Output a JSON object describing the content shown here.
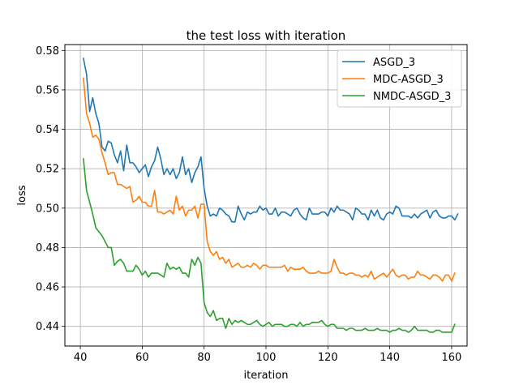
{
  "chart_data": {
    "type": "line",
    "title": "the test loss with iteration",
    "xlabel": "iteration",
    "ylabel": "loss",
    "xlim": [
      35,
      165
    ],
    "ylim": [
      0.43,
      0.583
    ],
    "xticks": [
      40,
      60,
      80,
      100,
      120,
      140,
      160
    ],
    "yticks": [
      0.44,
      0.46,
      0.48,
      0.5,
      0.52,
      0.54,
      0.56,
      0.58
    ],
    "grid": true,
    "legend_position": "top-right",
    "x_start": 41,
    "series": [
      {
        "name": "ASGD_3",
        "color": "#1f77b4",
        "values": [
          0.576,
          0.568,
          0.549,
          0.556,
          0.548,
          0.543,
          0.531,
          0.529,
          0.534,
          0.533,
          0.527,
          0.523,
          0.529,
          0.519,
          0.532,
          0.523,
          0.523,
          0.521,
          0.518,
          0.52,
          0.522,
          0.516,
          0.521,
          0.524,
          0.531,
          0.525,
          0.517,
          0.52,
          0.517,
          0.52,
          0.515,
          0.518,
          0.526,
          0.517,
          0.52,
          0.513,
          0.518,
          0.521,
          0.526,
          0.51,
          0.501,
          0.496,
          0.497,
          0.496,
          0.5,
          0.499,
          0.497,
          0.496,
          0.493,
          0.493,
          0.501,
          0.497,
          0.494,
          0.498,
          0.497,
          0.498,
          0.498,
          0.501,
          0.499,
          0.5,
          0.497,
          0.497,
          0.5,
          0.496,
          0.498,
          0.498,
          0.497,
          0.496,
          0.499,
          0.5,
          0.497,
          0.495,
          0.494,
          0.5,
          0.497,
          0.497,
          0.497,
          0.498,
          0.498,
          0.496,
          0.5,
          0.498,
          0.501,
          0.499,
          0.499,
          0.498,
          0.497,
          0.494,
          0.5,
          0.499,
          0.497,
          0.497,
          0.494,
          0.499,
          0.496,
          0.499,
          0.495,
          0.494,
          0.497,
          0.498,
          0.497,
          0.501,
          0.5,
          0.496,
          0.496,
          0.496,
          0.495,
          0.497,
          0.495,
          0.497,
          0.498,
          0.499,
          0.495,
          0.498,
          0.499,
          0.496,
          0.495,
          0.495,
          0.496,
          0.496,
          0.494,
          0.497
        ]
      },
      {
        "name": "MDC-ASGD_3",
        "color": "#ff7f0e",
        "values": [
          0.566,
          0.548,
          0.543,
          0.536,
          0.537,
          0.535,
          0.528,
          0.523,
          0.517,
          0.518,
          0.518,
          0.512,
          0.512,
          0.511,
          0.51,
          0.511,
          0.503,
          0.504,
          0.506,
          0.503,
          0.503,
          0.501,
          0.501,
          0.509,
          0.498,
          0.498,
          0.497,
          0.498,
          0.499,
          0.497,
          0.506,
          0.499,
          0.501,
          0.496,
          0.499,
          0.499,
          0.501,
          0.495,
          0.502,
          0.502,
          0.483,
          0.478,
          0.476,
          0.478,
          0.474,
          0.475,
          0.472,
          0.474,
          0.47,
          0.471,
          0.472,
          0.47,
          0.47,
          0.471,
          0.47,
          0.472,
          0.471,
          0.469,
          0.471,
          0.471,
          0.47,
          0.47,
          0.47,
          0.47,
          0.47,
          0.471,
          0.468,
          0.47,
          0.469,
          0.469,
          0.469,
          0.47,
          0.468,
          0.467,
          0.467,
          0.467,
          0.468,
          0.467,
          0.467,
          0.467,
          0.468,
          0.474,
          0.47,
          0.467,
          0.467,
          0.466,
          0.467,
          0.467,
          0.466,
          0.466,
          0.465,
          0.466,
          0.465,
          0.468,
          0.464,
          0.465,
          0.466,
          0.467,
          0.465,
          0.467,
          0.469,
          0.466,
          0.465,
          0.466,
          0.466,
          0.464,
          0.465,
          0.465,
          0.468,
          0.466,
          0.466,
          0.465,
          0.464,
          0.466,
          0.466,
          0.465,
          0.463,
          0.466,
          0.466,
          0.463,
          0.467
        ]
      },
      {
        "name": "NMDC-ASGD_3",
        "color": "#2ca02c",
        "values": [
          0.525,
          0.509,
          0.503,
          0.497,
          0.49,
          0.488,
          0.486,
          0.483,
          0.48,
          0.48,
          0.471,
          0.473,
          0.474,
          0.472,
          0.468,
          0.468,
          0.468,
          0.471,
          0.469,
          0.466,
          0.468,
          0.465,
          0.467,
          0.467,
          0.467,
          0.466,
          0.465,
          0.472,
          0.469,
          0.47,
          0.469,
          0.47,
          0.467,
          0.467,
          0.465,
          0.474,
          0.471,
          0.475,
          0.472,
          0.452,
          0.447,
          0.445,
          0.448,
          0.443,
          0.444,
          0.444,
          0.439,
          0.444,
          0.441,
          0.443,
          0.442,
          0.443,
          0.442,
          0.441,
          0.441,
          0.442,
          0.443,
          0.441,
          0.44,
          0.441,
          0.442,
          0.44,
          0.441,
          0.441,
          0.441,
          0.44,
          0.44,
          0.441,
          0.441,
          0.44,
          0.442,
          0.44,
          0.441,
          0.441,
          0.442,
          0.442,
          0.442,
          0.443,
          0.441,
          0.44,
          0.441,
          0.441,
          0.439,
          0.439,
          0.439,
          0.438,
          0.439,
          0.439,
          0.438,
          0.438,
          0.438,
          0.439,
          0.438,
          0.438,
          0.438,
          0.439,
          0.438,
          0.438,
          0.438,
          0.437,
          0.438,
          0.438,
          0.439,
          0.438,
          0.438,
          0.437,
          0.438,
          0.44,
          0.438,
          0.438,
          0.438,
          0.438,
          0.437,
          0.437,
          0.438,
          0.438,
          0.437,
          0.437,
          0.437,
          0.437,
          0.441
        ]
      }
    ]
  }
}
